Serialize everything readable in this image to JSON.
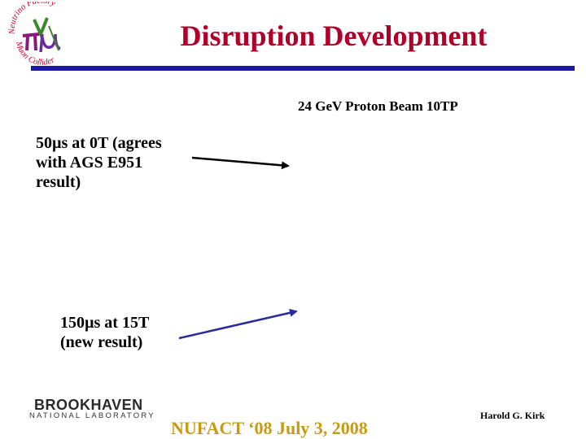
{
  "logo": {
    "ring_top_text": "Neutrino Factory",
    "ring_bottom_text": "Muon Collider",
    "colors": {
      "ring_text": "#c0002a",
      "nu": "#3a8a2a",
      "pi": "#8a1a7a",
      "mu": "#6a2aa0"
    }
  },
  "slide": {
    "title": "Disruption Development",
    "beam_label": "24 GeV Proton Beam  10TP"
  },
  "annotations": {
    "note1": {
      "line1": "50µs at 0T (agrees",
      "line2": "with AGS E951",
      "line3": "result)"
    },
    "note2": {
      "line1": "150µs at 15T",
      "line2": "(new result)"
    }
  },
  "footer": {
    "lab_name": "BROOKHAVEN",
    "lab_sub": "NATIONAL LABORATORY",
    "conference": "NUFACT ‘08 July 3, 2008",
    "author": "Harold G. Kirk"
  },
  "colors": {
    "title": "#b0002a",
    "rule": "#1a1aa0",
    "arrow1": "#000000",
    "arrow2": "#2a2aa0",
    "conference": "#c79a12"
  }
}
